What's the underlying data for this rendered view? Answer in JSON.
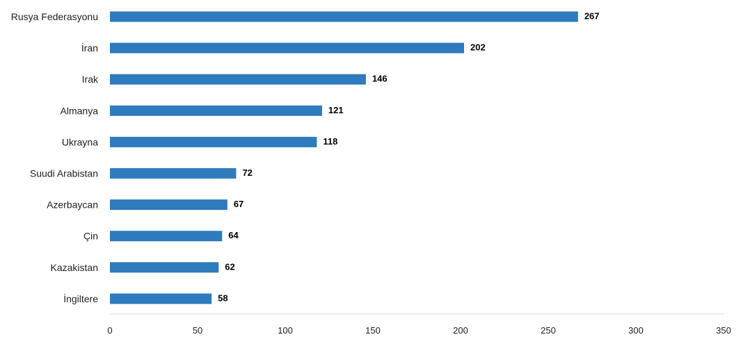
{
  "chart_data": {
    "type": "bar",
    "orientation": "horizontal",
    "title": "",
    "xlabel": "",
    "ylabel": "",
    "categories": [
      "Rusya Federasyonu",
      "İran",
      "Irak",
      "Almanya",
      "Ukrayna",
      "Suudi Arabistan",
      "Azerbaycan",
      "Çin",
      "Kazakistan",
      "İngiltere"
    ],
    "values": [
      267,
      202,
      146,
      121,
      118,
      72,
      67,
      64,
      62,
      58
    ],
    "xlim": [
      0,
      350
    ],
    "x_ticks": [
      0,
      50,
      100,
      150,
      200,
      250,
      300,
      350
    ],
    "grid": false,
    "legend": "none",
    "data_labels": true,
    "bar_color": "#2e7bbd"
  }
}
